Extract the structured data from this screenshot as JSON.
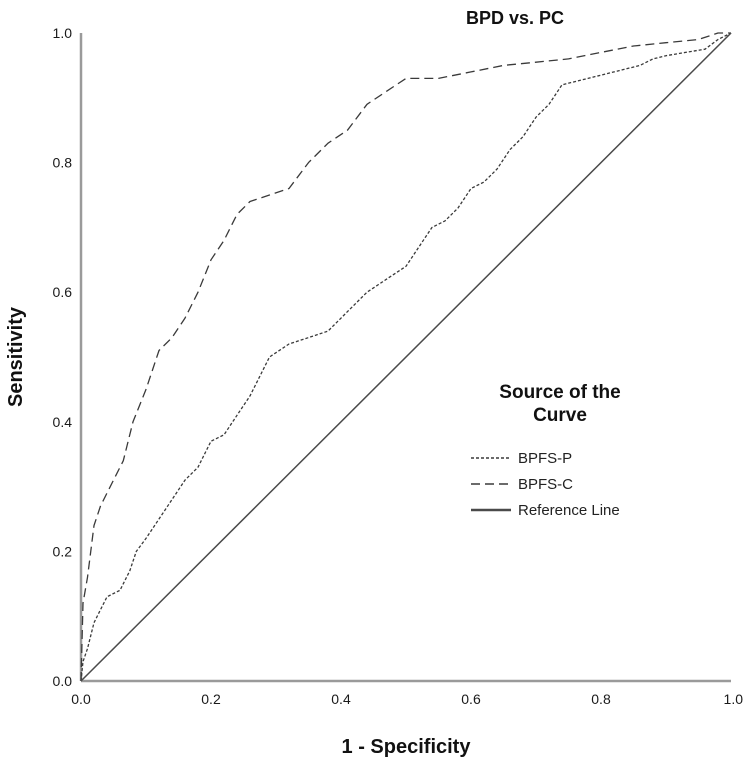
{
  "chart_data": {
    "type": "line",
    "title": "BPD vs. PC",
    "xlabel": "1 - Specificity",
    "ylabel": "Sensitivity",
    "xlim": [
      0,
      1
    ],
    "ylim": [
      0,
      1
    ],
    "x_ticks": [
      "0.0",
      "0.2",
      "0.4",
      "0.6",
      "0.8",
      "1.0"
    ],
    "y_ticks": [
      "0.0",
      "0.2",
      "0.4",
      "0.6",
      "0.8",
      "1.0"
    ],
    "grid": false,
    "legend": {
      "title_line1": "Source of the",
      "title_line2": "Curve",
      "placement": "right-middle"
    },
    "series": [
      {
        "name": "BPFS-P",
        "style": "short-dash",
        "color": "#3a3a3a",
        "points": [
          [
            0.0,
            0.0
          ],
          [
            0.003,
            0.03
          ],
          [
            0.01,
            0.05
          ],
          [
            0.02,
            0.09
          ],
          [
            0.03,
            0.11
          ],
          [
            0.04,
            0.13
          ],
          [
            0.06,
            0.14
          ],
          [
            0.075,
            0.17
          ],
          [
            0.085,
            0.2
          ],
          [
            0.1,
            0.22
          ],
          [
            0.12,
            0.25
          ],
          [
            0.14,
            0.28
          ],
          [
            0.16,
            0.31
          ],
          [
            0.18,
            0.33
          ],
          [
            0.2,
            0.37
          ],
          [
            0.22,
            0.38
          ],
          [
            0.24,
            0.41
          ],
          [
            0.26,
            0.44
          ],
          [
            0.29,
            0.5
          ],
          [
            0.32,
            0.52
          ],
          [
            0.35,
            0.53
          ],
          [
            0.38,
            0.54
          ],
          [
            0.41,
            0.57
          ],
          [
            0.44,
            0.6
          ],
          [
            0.47,
            0.62
          ],
          [
            0.5,
            0.64
          ],
          [
            0.52,
            0.67
          ],
          [
            0.54,
            0.7
          ],
          [
            0.56,
            0.71
          ],
          [
            0.58,
            0.73
          ],
          [
            0.6,
            0.76
          ],
          [
            0.62,
            0.77
          ],
          [
            0.64,
            0.79
          ],
          [
            0.66,
            0.82
          ],
          [
            0.68,
            0.84
          ],
          [
            0.7,
            0.87
          ],
          [
            0.72,
            0.89
          ],
          [
            0.74,
            0.92
          ],
          [
            0.78,
            0.93
          ],
          [
            0.82,
            0.94
          ],
          [
            0.86,
            0.95
          ],
          [
            0.88,
            0.96
          ],
          [
            0.9,
            0.965
          ],
          [
            0.93,
            0.97
          ],
          [
            0.96,
            0.975
          ],
          [
            0.98,
            0.99
          ],
          [
            1.0,
            1.0
          ]
        ]
      },
      {
        "name": "BPFS-C",
        "style": "long-dash",
        "color": "#3a3a3a",
        "points": [
          [
            0.0,
            0.0
          ],
          [
            0.003,
            0.12
          ],
          [
            0.01,
            0.16
          ],
          [
            0.02,
            0.24
          ],
          [
            0.03,
            0.27
          ],
          [
            0.05,
            0.31
          ],
          [
            0.065,
            0.34
          ],
          [
            0.08,
            0.4
          ],
          [
            0.1,
            0.45
          ],
          [
            0.12,
            0.51
          ],
          [
            0.14,
            0.53
          ],
          [
            0.16,
            0.56
          ],
          [
            0.18,
            0.6
          ],
          [
            0.2,
            0.65
          ],
          [
            0.22,
            0.68
          ],
          [
            0.24,
            0.72
          ],
          [
            0.26,
            0.74
          ],
          [
            0.29,
            0.75
          ],
          [
            0.32,
            0.76
          ],
          [
            0.35,
            0.8
          ],
          [
            0.38,
            0.83
          ],
          [
            0.41,
            0.85
          ],
          [
            0.44,
            0.89
          ],
          [
            0.47,
            0.91
          ],
          [
            0.5,
            0.93
          ],
          [
            0.55,
            0.93
          ],
          [
            0.6,
            0.94
          ],
          [
            0.65,
            0.95
          ],
          [
            0.7,
            0.955
          ],
          [
            0.75,
            0.96
          ],
          [
            0.8,
            0.97
          ],
          [
            0.85,
            0.98
          ],
          [
            0.9,
            0.985
          ],
          [
            0.95,
            0.99
          ],
          [
            0.98,
            1.0
          ],
          [
            1.0,
            1.0
          ]
        ]
      },
      {
        "name": "Reference Line",
        "style": "solid",
        "color": "#4a4a4a",
        "points": [
          [
            0,
            0
          ],
          [
            1,
            1
          ]
        ]
      }
    ]
  }
}
